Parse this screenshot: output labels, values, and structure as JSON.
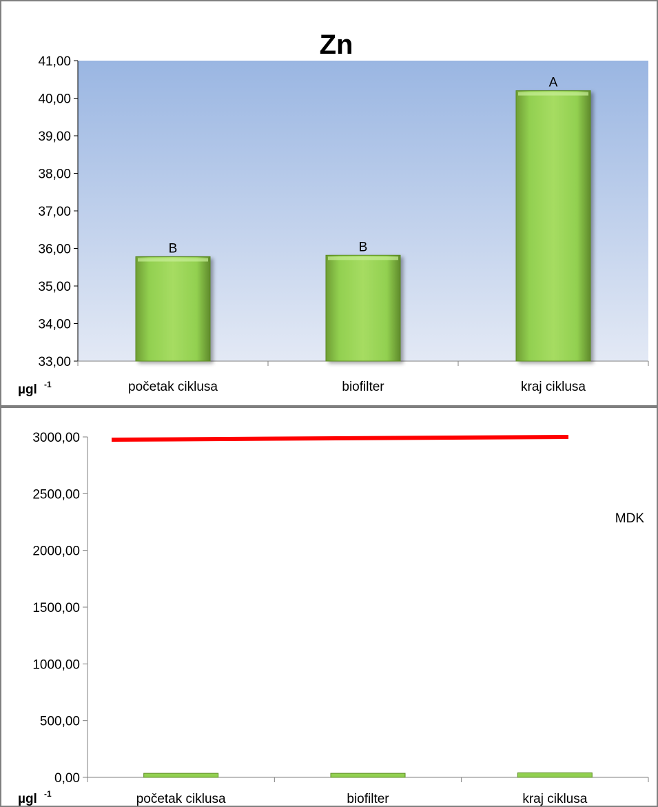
{
  "chart_data": [
    {
      "type": "bar",
      "title": "Zn",
      "unit_label": "µgl",
      "unit_superscript": "-1",
      "categories": [
        "početak ciklusa",
        "biofilter",
        "kraj ciklusa"
      ],
      "values": [
        35.78,
        35.82,
        40.2
      ],
      "significance_letters": [
        "B",
        "B",
        "A"
      ],
      "ylim": [
        33,
        41
      ],
      "yticks": [
        33,
        34,
        35,
        36,
        37,
        38,
        39,
        40,
        41
      ],
      "ytick_labels": [
        "33,00",
        "34,00",
        "35,00",
        "36,00",
        "37,00",
        "38,00",
        "39,00",
        "40,00",
        "41,00"
      ],
      "bar_color": "#92d050",
      "background_gradient": [
        "#9ab6e2",
        "#e3e9f5"
      ],
      "grid": false,
      "legend": "none"
    },
    {
      "type": "bar",
      "unit_label": "µgl",
      "unit_superscript": "-1",
      "categories": [
        "početak ciklusa",
        "biofilter",
        "kraj ciklusa"
      ],
      "values": [
        35.78,
        35.82,
        40.2
      ],
      "ylim": [
        0,
        3000
      ],
      "yticks": [
        0,
        500,
        1000,
        1500,
        2000,
        2500,
        3000
      ],
      "ytick_labels": [
        "0,00",
        "500,00",
        "1000,00",
        "1500,00",
        "2000,00",
        "2500,00",
        "3000,00"
      ],
      "bar_color": "#92d050",
      "reference_line": {
        "label": "MDK",
        "value": 3000,
        "color": "#ff0000"
      },
      "grid": false,
      "legend": "none"
    }
  ]
}
